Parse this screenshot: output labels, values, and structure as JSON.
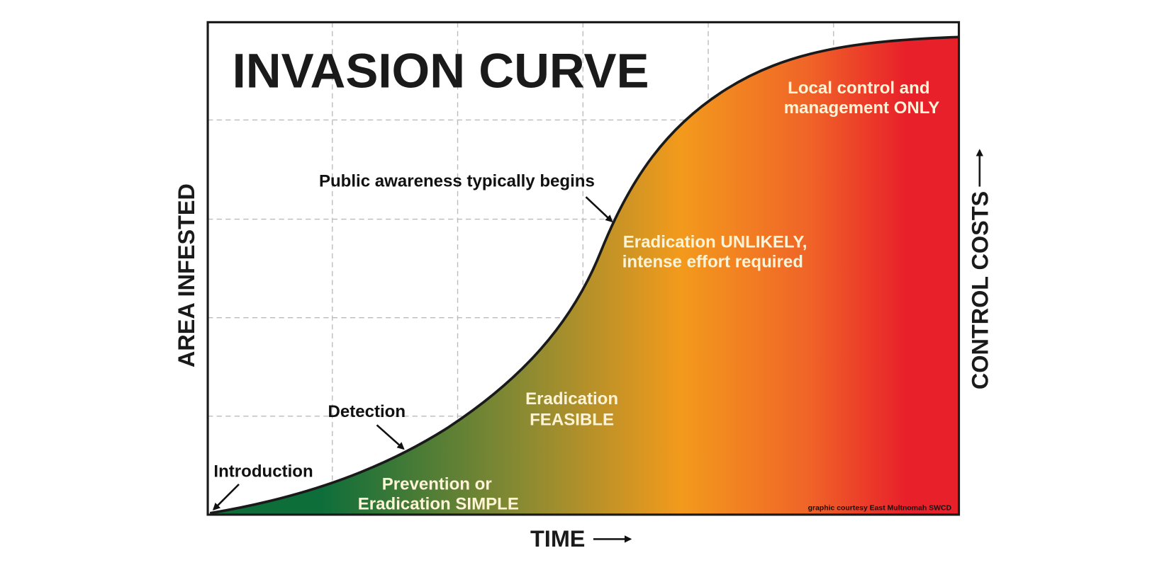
{
  "title": "INVASION CURVE",
  "x_axis_label": "TIME",
  "y_axis_label": "AREA INFESTED",
  "y2_axis_label": "CONTROL COSTS",
  "annotations": [
    "Introduction",
    "Detection",
    "Public awareness typically begins"
  ],
  "regions": [
    [
      "Local control and",
      "management ONLY"
    ],
    [
      "Eradication UNLIKELY,",
      "intense effort required"
    ],
    [
      "Eradication",
      "FEASIBLE"
    ],
    [
      "Prevention or",
      "Eradication SIMPLE"
    ]
  ],
  "credit": "graphic courtesy East Multnomah SWCD"
}
